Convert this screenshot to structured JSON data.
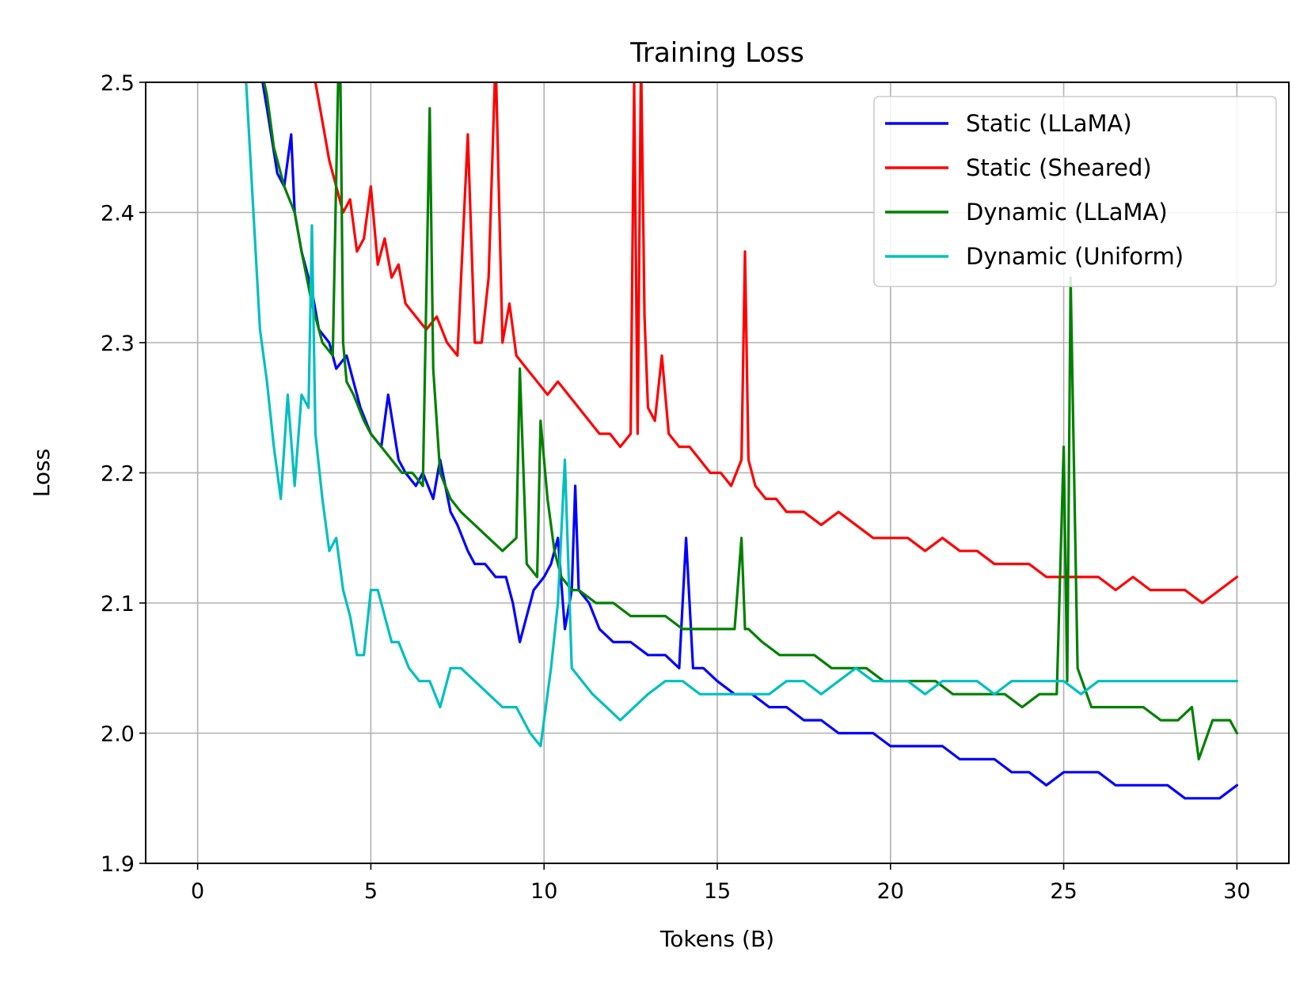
{
  "chart_data": {
    "type": "line",
    "title": "Training Loss",
    "xlabel": "Tokens (B)",
    "ylabel": "Loss",
    "xlim": [
      -1.5,
      31.5
    ],
    "ylim": [
      1.9,
      2.5
    ],
    "xticks": [
      0,
      5,
      10,
      15,
      20,
      25,
      30
    ],
    "xtick_labels": [
      "0",
      "5",
      "10",
      "15",
      "20",
      "25",
      "30"
    ],
    "yticks": [
      1.9,
      2.0,
      2.1,
      2.2,
      2.3,
      2.4,
      2.5
    ],
    "ytick_labels": [
      "1.9",
      "2.0",
      "2.1",
      "2.2",
      "2.3",
      "2.4",
      "2.5"
    ],
    "grid": true,
    "legend_position": "top-right",
    "series": [
      {
        "name": "Static (LLaMA)",
        "color": "#0000ff",
        "x": [
          1.5,
          2.0,
          2.3,
          2.5,
          2.7,
          2.8,
          3.0,
          3.3,
          3.5,
          3.8,
          4.0,
          4.3,
          4.5,
          4.7,
          5.0,
          5.3,
          5.5,
          5.8,
          6.0,
          6.3,
          6.5,
          6.8,
          7.0,
          7.3,
          7.5,
          7.8,
          8.0,
          8.3,
          8.6,
          8.9,
          9.1,
          9.3,
          9.5,
          9.7,
          10.0,
          10.2,
          10.4,
          10.6,
          10.8,
          10.9,
          11.0,
          11.3,
          11.6,
          12.0,
          12.5,
          13.0,
          13.5,
          13.9,
          14.1,
          14.3,
          14.6,
          15.0,
          15.5,
          16.0,
          16.5,
          17.0,
          17.5,
          18.0,
          18.5,
          19.0,
          19.5,
          20.0,
          20.5,
          21.0,
          21.5,
          22.0,
          22.5,
          23.0,
          23.5,
          24.0,
          24.5,
          25.0,
          25.5,
          26.0,
          26.5,
          27.0,
          27.5,
          28.0,
          28.5,
          29.0,
          29.5,
          30.0
        ],
        "y": [
          2.56,
          2.48,
          2.43,
          2.42,
          2.46,
          2.4,
          2.37,
          2.34,
          2.31,
          2.3,
          2.28,
          2.29,
          2.27,
          2.25,
          2.23,
          2.22,
          2.26,
          2.21,
          2.2,
          2.19,
          2.2,
          2.18,
          2.21,
          2.17,
          2.16,
          2.14,
          2.13,
          2.13,
          2.12,
          2.12,
          2.1,
          2.07,
          2.09,
          2.11,
          2.12,
          2.13,
          2.15,
          2.08,
          2.11,
          2.19,
          2.11,
          2.1,
          2.08,
          2.07,
          2.07,
          2.06,
          2.06,
          2.05,
          2.15,
          2.05,
          2.05,
          2.04,
          2.03,
          2.03,
          2.02,
          2.02,
          2.01,
          2.01,
          2.0,
          2.0,
          2.0,
          1.99,
          1.99,
          1.99,
          1.99,
          1.98,
          1.98,
          1.98,
          1.97,
          1.97,
          1.96,
          1.97,
          1.97,
          1.97,
          1.96,
          1.96,
          1.96,
          1.96,
          1.95,
          1.95,
          1.95,
          1.96
        ]
      },
      {
        "name": "Static (Sheared)",
        "color": "#ff0000",
        "x": [
          3.4,
          3.6,
          3.8,
          4.0,
          4.2,
          4.4,
          4.6,
          4.8,
          5.0,
          5.2,
          5.4,
          5.6,
          5.8,
          6.0,
          6.3,
          6.6,
          6.9,
          7.2,
          7.5,
          7.8,
          8.0,
          8.2,
          8.4,
          8.6,
          8.8,
          9.0,
          9.2,
          9.5,
          9.8,
          10.1,
          10.4,
          10.7,
          11.0,
          11.3,
          11.6,
          11.9,
          12.2,
          12.5,
          12.6,
          12.7,
          12.8,
          12.9,
          13.0,
          13.2,
          13.4,
          13.6,
          13.9,
          14.2,
          14.5,
          14.8,
          15.1,
          15.4,
          15.7,
          15.8,
          15.9,
          16.1,
          16.4,
          16.7,
          17.0,
          17.5,
          18.0,
          18.5,
          19.0,
          19.5,
          20.0,
          20.5,
          21.0,
          21.5,
          22.0,
          22.5,
          23.0,
          23.5,
          24.0,
          24.5,
          25.0,
          25.5,
          26.0,
          26.5,
          27.0,
          27.5,
          28.0,
          28.5,
          29.0,
          29.5,
          30.0
        ],
        "y": [
          2.5,
          2.47,
          2.44,
          2.42,
          2.4,
          2.41,
          2.37,
          2.38,
          2.42,
          2.36,
          2.38,
          2.35,
          2.36,
          2.33,
          2.32,
          2.31,
          2.32,
          2.3,
          2.29,
          2.46,
          2.3,
          2.3,
          2.35,
          2.52,
          2.3,
          2.33,
          2.29,
          2.28,
          2.27,
          2.26,
          2.27,
          2.26,
          2.25,
          2.24,
          2.23,
          2.23,
          2.22,
          2.23,
          2.5,
          2.23,
          2.52,
          2.32,
          2.25,
          2.24,
          2.29,
          2.23,
          2.22,
          2.22,
          2.21,
          2.2,
          2.2,
          2.19,
          2.21,
          2.37,
          2.21,
          2.19,
          2.18,
          2.18,
          2.17,
          2.17,
          2.16,
          2.17,
          2.16,
          2.15,
          2.15,
          2.15,
          2.14,
          2.15,
          2.14,
          2.14,
          2.13,
          2.13,
          2.13,
          2.12,
          2.12,
          2.12,
          2.12,
          2.11,
          2.12,
          2.11,
          2.11,
          2.11,
          2.1,
          2.11,
          2.12
        ]
      },
      {
        "name": "Dynamic (LLaMA)",
        "color": "#008000",
        "x": [
          1.5,
          2.0,
          2.2,
          2.5,
          2.8,
          3.0,
          3.3,
          3.6,
          3.9,
          4.1,
          4.2,
          4.3,
          4.5,
          4.8,
          5.0,
          5.3,
          5.6,
          5.9,
          6.2,
          6.5,
          6.7,
          6.8,
          7.0,
          7.3,
          7.6,
          8.0,
          8.4,
          8.8,
          9.2,
          9.3,
          9.5,
          9.8,
          9.9,
          10.1,
          10.3,
          10.5,
          10.8,
          11.0,
          11.5,
          12.0,
          12.5,
          13.0,
          13.5,
          14.0,
          14.5,
          15.0,
          15.5,
          15.7,
          15.8,
          15.9,
          16.3,
          16.8,
          17.3,
          17.8,
          18.3,
          18.8,
          19.3,
          19.8,
          20.3,
          20.8,
          21.3,
          21.8,
          22.3,
          22.8,
          23.3,
          23.8,
          24.3,
          24.8,
          25.0,
          25.1,
          25.2,
          25.4,
          25.8,
          26.3,
          26.8,
          27.3,
          27.8,
          28.3,
          28.7,
          28.9,
          29.3,
          29.8,
          30.0
        ],
        "y": [
          2.55,
          2.49,
          2.45,
          2.42,
          2.4,
          2.37,
          2.33,
          2.3,
          2.29,
          2.56,
          2.3,
          2.27,
          2.26,
          2.24,
          2.23,
          2.22,
          2.21,
          2.2,
          2.2,
          2.19,
          2.48,
          2.28,
          2.2,
          2.18,
          2.17,
          2.16,
          2.15,
          2.14,
          2.15,
          2.28,
          2.13,
          2.12,
          2.24,
          2.18,
          2.14,
          2.12,
          2.11,
          2.11,
          2.1,
          2.1,
          2.09,
          2.09,
          2.09,
          2.08,
          2.08,
          2.08,
          2.08,
          2.15,
          2.08,
          2.08,
          2.07,
          2.06,
          2.06,
          2.06,
          2.05,
          2.05,
          2.05,
          2.04,
          2.04,
          2.04,
          2.04,
          2.03,
          2.03,
          2.03,
          2.03,
          2.02,
          2.03,
          2.03,
          2.22,
          2.04,
          2.35,
          2.05,
          2.02,
          2.02,
          2.02,
          2.02,
          2.01,
          2.01,
          2.02,
          1.98,
          2.01,
          2.01,
          2.0
        ]
      },
      {
        "name": "Dynamic (Uniform)",
        "color": "#00bfbf",
        "x": [
          1.4,
          1.8,
          2.0,
          2.2,
          2.4,
          2.6,
          2.8,
          3.0,
          3.2,
          3.3,
          3.4,
          3.6,
          3.8,
          4.0,
          4.2,
          4.4,
          4.6,
          4.8,
          5.0,
          5.2,
          5.4,
          5.6,
          5.8,
          6.1,
          6.4,
          6.7,
          7.0,
          7.3,
          7.6,
          8.0,
          8.4,
          8.8,
          9.2,
          9.6,
          9.9,
          10.2,
          10.4,
          10.6,
          10.8,
          11.1,
          11.4,
          11.8,
          12.2,
          12.6,
          13.0,
          13.5,
          14.0,
          14.5,
          15.0,
          15.5,
          16.0,
          16.5,
          17.0,
          17.5,
          18.0,
          18.5,
          19.0,
          19.5,
          20.0,
          20.5,
          21.0,
          21.5,
          22.0,
          22.5,
          23.0,
          23.5,
          24.0,
          24.5,
          25.0,
          25.5,
          26.0,
          26.5,
          27.0,
          27.5,
          28.0,
          28.5,
          29.0,
          29.5,
          30.0
        ],
        "y": [
          2.5,
          2.31,
          2.27,
          2.22,
          2.18,
          2.26,
          2.19,
          2.26,
          2.25,
          2.39,
          2.23,
          2.18,
          2.14,
          2.15,
          2.11,
          2.09,
          2.06,
          2.06,
          2.11,
          2.11,
          2.09,
          2.07,
          2.07,
          2.05,
          2.04,
          2.04,
          2.02,
          2.05,
          2.05,
          2.04,
          2.03,
          2.02,
          2.02,
          2.0,
          1.99,
          2.05,
          2.1,
          2.21,
          2.05,
          2.04,
          2.03,
          2.02,
          2.01,
          2.02,
          2.03,
          2.04,
          2.04,
          2.03,
          2.03,
          2.03,
          2.03,
          2.03,
          2.04,
          2.04,
          2.03,
          2.04,
          2.05,
          2.04,
          2.04,
          2.04,
          2.03,
          2.04,
          2.04,
          2.04,
          2.03,
          2.04,
          2.04,
          2.04,
          2.04,
          2.03,
          2.04,
          2.04,
          2.04,
          2.04,
          2.04,
          2.04,
          2.04,
          2.04,
          2.04
        ]
      }
    ]
  }
}
